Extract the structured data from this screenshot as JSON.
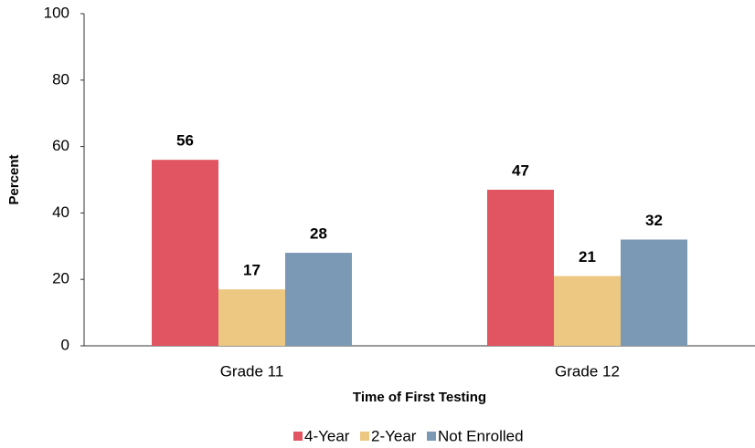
{
  "chart_data": {
    "type": "bar",
    "x_label": "Time of First Testing",
    "y_label": "Percent",
    "categories": [
      "Grade 11",
      "Grade 12"
    ],
    "series": [
      {
        "name": "4-Year",
        "color": "#e05561",
        "values": [
          56,
          47
        ]
      },
      {
        "name": "2-Year",
        "color": "#edc882",
        "values": [
          17,
          21
        ]
      },
      {
        "name": "Not Enrolled",
        "color": "#7b98b5",
        "values": [
          28,
          32
        ]
      }
    ],
    "ylim": [
      0,
      100
    ],
    "yticks": [
      0,
      20,
      40,
      60,
      80,
      100
    ],
    "grid": false,
    "legend": "bottom"
  }
}
